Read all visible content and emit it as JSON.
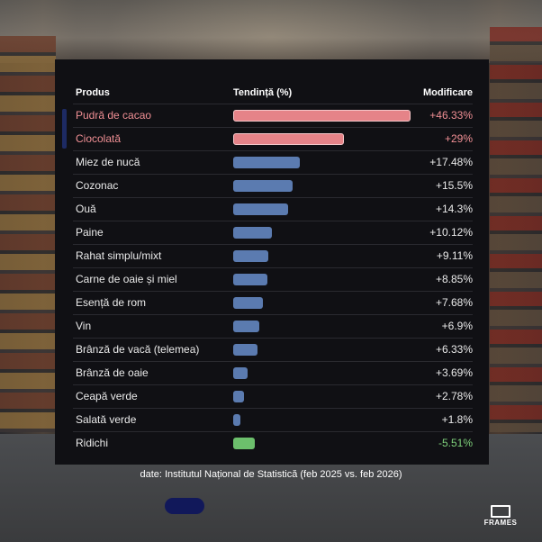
{
  "chart_data": {
    "type": "table",
    "columns": [
      "Produs",
      "Tendință (%)",
      "Modificare"
    ],
    "rows": [
      {
        "name": "Pudră de cacao",
        "value": 46.33,
        "label": "+46.33%",
        "highlight": true
      },
      {
        "name": "Ciocolată",
        "value": 29,
        "label": "+29%",
        "highlight": true
      },
      {
        "name": "Miez de nucă",
        "value": 17.48,
        "label": "+17.48%"
      },
      {
        "name": "Cozonac",
        "value": 15.5,
        "label": "+15.5%"
      },
      {
        "name": "Ouă",
        "value": 14.3,
        "label": "+14.3%"
      },
      {
        "name": "Paine",
        "value": 10.12,
        "label": "+10.12%"
      },
      {
        "name": "Rahat simplu/mixt",
        "value": 9.11,
        "label": "+9.11%"
      },
      {
        "name": "Carne de oaie și miel",
        "value": 8.85,
        "label": "+8.85%"
      },
      {
        "name": "Esență de rom",
        "value": 7.68,
        "label": "+7.68%"
      },
      {
        "name": "Vin",
        "value": 6.9,
        "label": "+6.9%"
      },
      {
        "name": "Brânză de vacă (telemea)",
        "value": 6.33,
        "label": "+6.33%"
      },
      {
        "name": "Brânză de oaie",
        "value": 3.69,
        "label": "+3.69%"
      },
      {
        "name": "Ceapă verde",
        "value": 2.78,
        "label": "+2.78%"
      },
      {
        "name": "Salată verde",
        "value": 1.8,
        "label": "+1.8%"
      },
      {
        "name": "Ridichi",
        "value": -5.51,
        "label": "-5.51%"
      }
    ],
    "colors": {
      "top": "#e58388",
      "positive": "#5b7bb0",
      "negative": "#6cbf6c"
    }
  },
  "header": {
    "col_product": "Produs",
    "col_trend": "Tendință (%)",
    "col_change": "Modificare"
  },
  "source": "date: Institutul Național de Statistică (feb 2025 vs. feb 2026)",
  "logo": "FRAMES"
}
